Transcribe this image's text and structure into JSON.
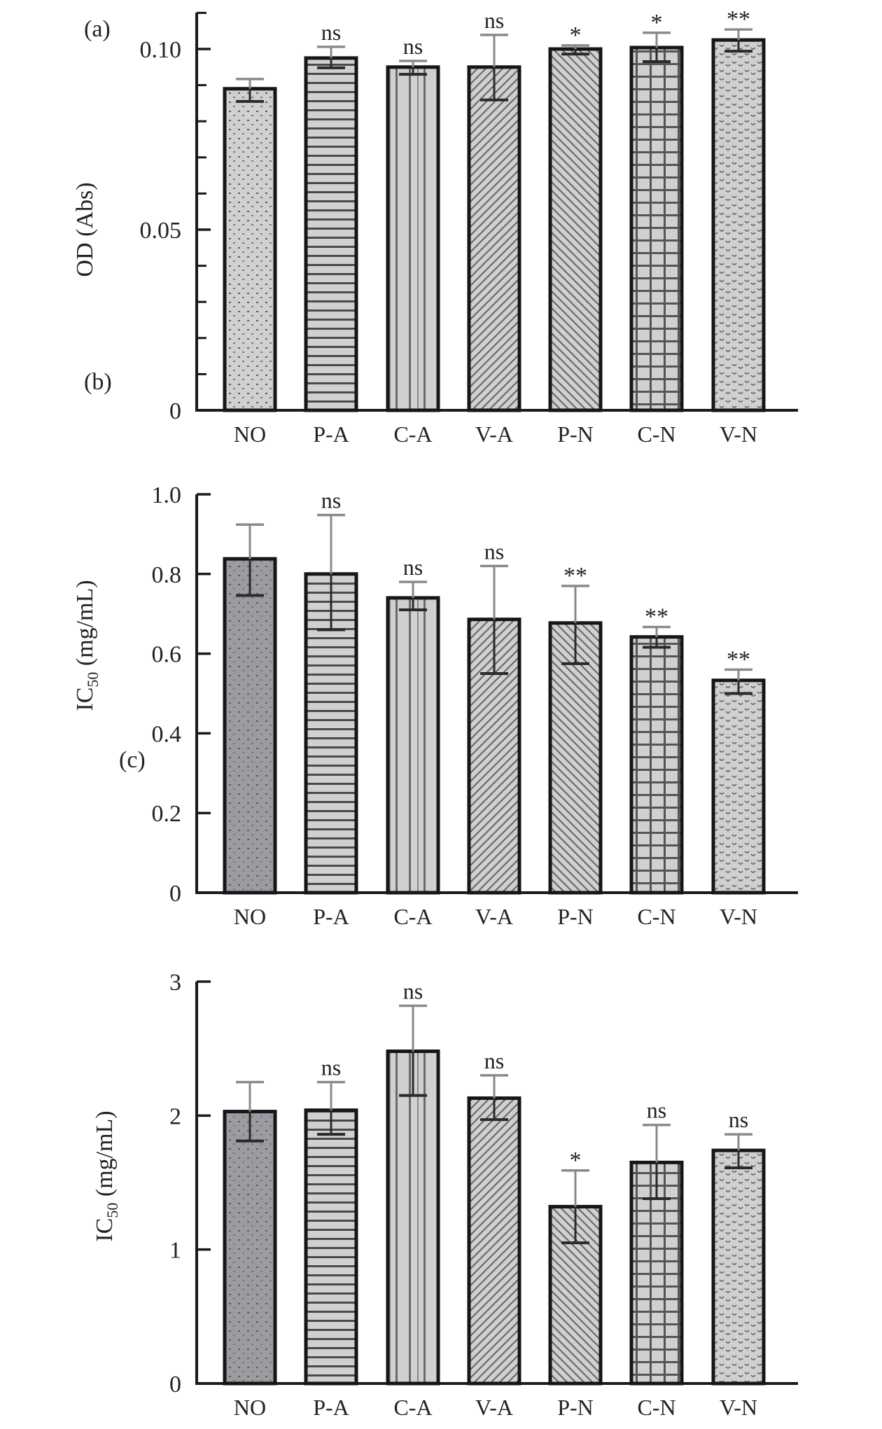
{
  "chart_data": [
    {
      "type": "bar",
      "panel_label": "(a)",
      "ylabel": "OD (Abs)",
      "ylim": [
        0,
        0.105
      ],
      "major_ticks": [
        0,
        0.05,
        0.1
      ],
      "major_tick_labels": [
        "0",
        "0.05",
        "0.10"
      ],
      "minor_tick_step": 0.01,
      "categories": [
        "NO",
        "P-A",
        "C-A",
        "V-A",
        "P-N",
        "C-N",
        "V-N"
      ],
      "values": [
        0.089,
        0.0975,
        0.095,
        0.095,
        0.1,
        0.1004,
        0.1025
      ],
      "error_upper": [
        0.0917,
        0.1006,
        0.0967,
        0.1039,
        0.101,
        0.1045,
        0.1054
      ],
      "error_lower": [
        0.0855,
        0.0948,
        0.093,
        0.0859,
        0.0986,
        0.0965,
        0.0994
      ],
      "significance": [
        "",
        "ns",
        "ns",
        "ns",
        "*",
        "*",
        "**"
      ]
    },
    {
      "type": "bar",
      "panel_label": "(b)",
      "ylabel": "IC",
      "ylabel_sub": "50",
      "ylabel_unit": " (mg/mL)",
      "ylim": [
        0,
        1.0
      ],
      "major_ticks": [
        0,
        0.2,
        0.4,
        0.6,
        0.8,
        1.0
      ],
      "major_tick_labels": [
        "0",
        "0.2",
        "0.4",
        "0.6",
        "0.8",
        "1.0"
      ],
      "categories": [
        "NO",
        "P-A",
        "C-A",
        "V-A",
        "P-N",
        "C-N",
        "V-N"
      ],
      "values": [
        0.838,
        0.8,
        0.74,
        0.686,
        0.677,
        0.642,
        0.533
      ],
      "error_upper": [
        0.924,
        0.948,
        0.78,
        0.82,
        0.77,
        0.667,
        0.56
      ],
      "error_lower": [
        0.746,
        0.66,
        0.71,
        0.55,
        0.575,
        0.616,
        0.5
      ],
      "significance": [
        "",
        "ns",
        "ns",
        "ns",
        "**",
        "**",
        "**"
      ]
    },
    {
      "type": "bar",
      "panel_label": "(c)",
      "ylabel": "IC",
      "ylabel_sub": "50",
      "ylabel_unit": " (mg/mL)",
      "ylim": [
        0,
        3
      ],
      "major_ticks": [
        0,
        1,
        2,
        3
      ],
      "major_tick_labels": [
        "0",
        "1",
        "2",
        "3"
      ],
      "categories": [
        "NO",
        "P-A",
        "C-A",
        "V-A",
        "P-N",
        "C-N",
        "V-N"
      ],
      "values": [
        2.03,
        2.04,
        2.48,
        2.13,
        1.32,
        1.65,
        1.74
      ],
      "error_upper": [
        2.25,
        2.25,
        2.82,
        2.3,
        1.59,
        1.93,
        1.86
      ],
      "error_lower": [
        1.81,
        1.86,
        2.15,
        1.97,
        1.05,
        1.38,
        1.61
      ],
      "significance": [
        "",
        "ns",
        "ns",
        "ns",
        "*",
        "ns",
        "ns"
      ]
    }
  ],
  "colors": {
    "axis": "#1a1a1a",
    "bar_border": "#161616",
    "fill_light": "#cfd0d2",
    "fill_dark": "#9a9ca1",
    "pattern_line": "#5a5a5a",
    "error_bar": "#2a2a2a",
    "error_bar_light": "#8a8a8a"
  }
}
